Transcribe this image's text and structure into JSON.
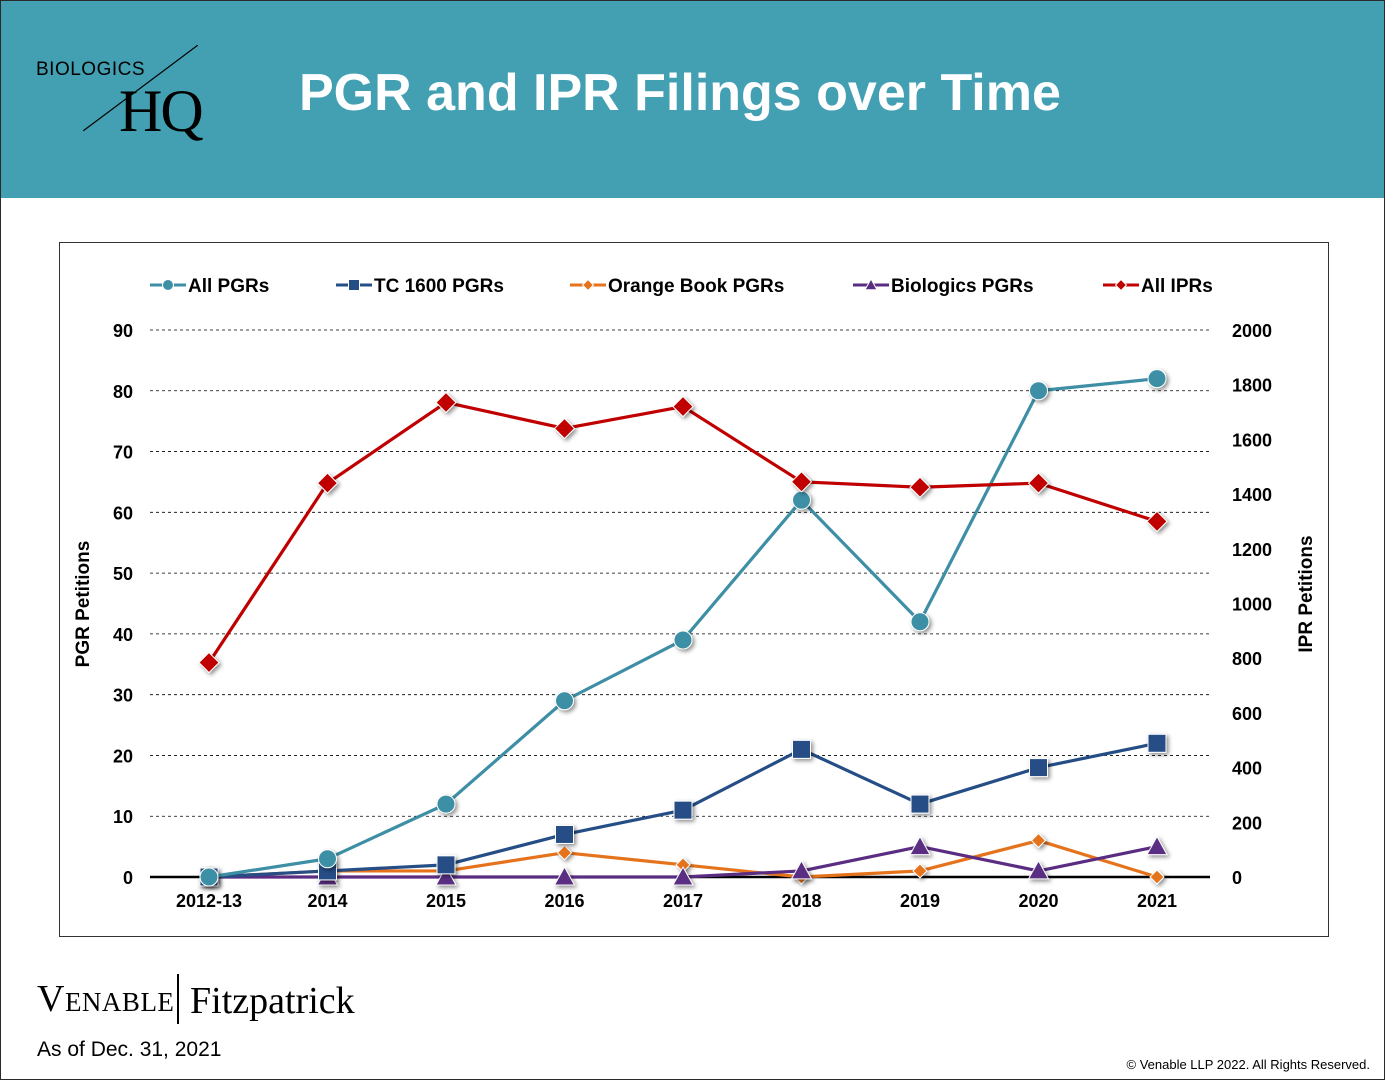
{
  "header": {
    "logo_top": "BIOLOGICS",
    "logo_main": "HQ",
    "title": "PGR and IPR Filings over Time"
  },
  "footer": {
    "brand_left": "Venable",
    "brand_right": "Fitzpatrick",
    "as_of": "As of Dec. 31, 2021",
    "copyright": "© Venable LLP 2022. All Rights Reserved."
  },
  "colors": {
    "header_bg": "#43a0b3",
    "all_pgrs": "#3e8fa6",
    "tc1600": "#254e86",
    "orange_book": "#e5731c",
    "biologics": "#5a2d82",
    "all_iprs": "#c00000"
  },
  "chart_data": {
    "type": "line",
    "categories": [
      "2012-13",
      "2014",
      "2015",
      "2016",
      "2017",
      "2018",
      "2019",
      "2020",
      "2021"
    ],
    "ylabel": "PGR Petitions",
    "ylabel_right": "IPR Petitions",
    "ylim": [
      0,
      90
    ],
    "yticks": [
      0,
      10,
      20,
      30,
      40,
      50,
      60,
      70,
      80,
      90
    ],
    "ylim_right": [
      0,
      2000
    ],
    "yticks_right": [
      0,
      200,
      400,
      600,
      800,
      1000,
      1200,
      1400,
      1600,
      1800,
      2000
    ],
    "grid": "horizontal dashed",
    "legend_position": "top",
    "series": [
      {
        "name": "All PGRs",
        "axis": "left",
        "marker": "circle",
        "color": "#3e8fa6",
        "values": [
          0,
          3,
          12,
          29,
          39,
          62,
          42,
          80,
          82
        ]
      },
      {
        "name": "TC 1600 PGRs",
        "axis": "left",
        "marker": "square",
        "color": "#254e86",
        "values": [
          0,
          1,
          2,
          7,
          11,
          21,
          12,
          18,
          22
        ]
      },
      {
        "name": "Orange Book PGRs",
        "axis": "left",
        "marker": "diamond",
        "color": "#e5731c",
        "values": [
          0,
          1,
          1,
          4,
          2,
          0,
          1,
          6,
          0
        ]
      },
      {
        "name": "Biologics PGRs",
        "axis": "left",
        "marker": "triangle",
        "color": "#5a2d82",
        "values": [
          0,
          0,
          0,
          0,
          0,
          1,
          5,
          1,
          5
        ]
      },
      {
        "name": "All IPRs",
        "axis": "right",
        "marker": "diamond",
        "color": "#c00000",
        "values": [
          784,
          1440,
          1735,
          1640,
          1720,
          1445,
          1425,
          1440,
          1300
        ]
      }
    ]
  }
}
